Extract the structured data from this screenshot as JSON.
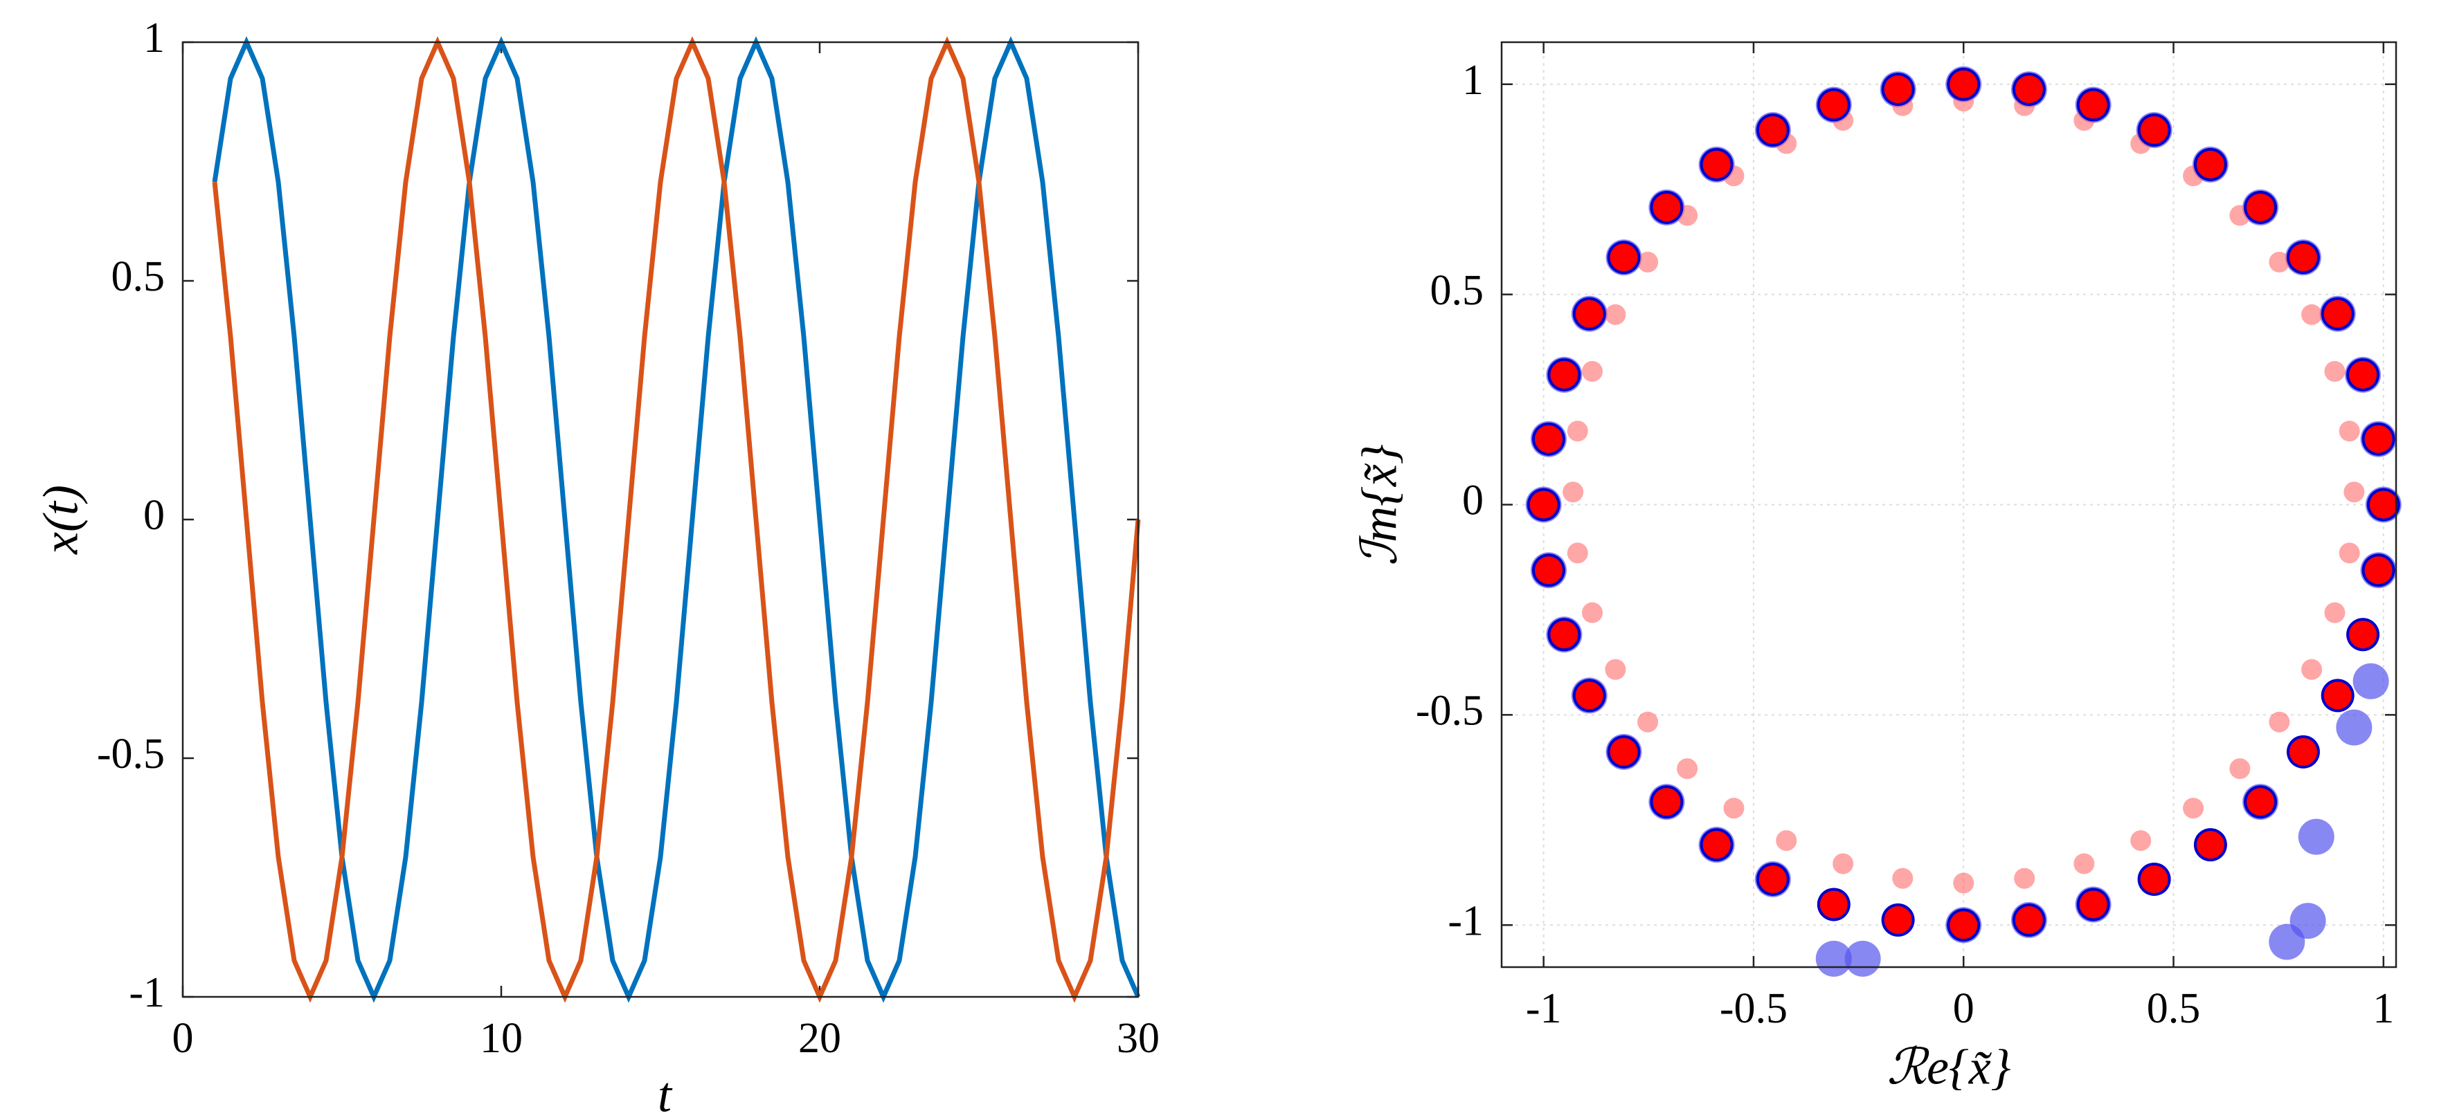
{
  "chart_data": [
    {
      "type": "line",
      "x_label": "t",
      "y_label": "x(t)",
      "x": [
        1,
        1.5,
        2,
        2.5,
        3,
        3.5,
        4,
        4.5,
        5,
        5.5,
        6,
        6.5,
        7,
        7.5,
        8,
        8.5,
        9,
        9.5,
        10,
        10.5,
        11,
        11.5,
        12,
        12.5,
        13,
        13.5,
        14,
        14.5,
        15,
        15.5,
        16,
        16.5,
        17,
        17.5,
        18,
        18.5,
        19,
        19.5,
        20,
        20.5,
        21,
        21.5,
        22,
        22.5,
        23,
        23.5,
        24,
        24.5,
        25,
        25.5,
        26,
        26.5,
        27,
        27.5,
        28,
        28.5,
        29,
        29.5,
        30
      ],
      "series": [
        {
          "color": "#0072BD",
          "values": [
            0.707,
            0.924,
            1,
            0.924,
            0.707,
            0.383,
            0,
            -0.383,
            -0.707,
            -0.924,
            -1,
            -0.924,
            -0.707,
            -0.383,
            0,
            0.383,
            0.707,
            0.924,
            1,
            0.924,
            0.707,
            0.383,
            0,
            -0.383,
            -0.707,
            -0.924,
            -1,
            -0.924,
            -0.707,
            -0.383,
            0,
            0.383,
            0.707,
            0.924,
            1,
            0.924,
            0.707,
            0.383,
            0,
            -0.383,
            -0.707,
            -0.924,
            -1,
            -0.924,
            -0.707,
            -0.383,
            0,
            0.383,
            0.707,
            0.924,
            1,
            0.924,
            0.707,
            0.383,
            0,
            -0.383,
            -0.707,
            -0.924,
            -1
          ]
        },
        {
          "color": "#D95319",
          "values": [
            0.707,
            0.383,
            0,
            -0.383,
            -0.707,
            -0.924,
            -1,
            -0.924,
            -0.707,
            -0.383,
            0,
            0.383,
            0.707,
            0.924,
            1,
            0.924,
            0.707,
            0.383,
            0,
            -0.383,
            -0.707,
            -0.924,
            -1,
            -0.924,
            -0.707,
            -0.383,
            0,
            0.383,
            0.707,
            0.924,
            1,
            0.924,
            0.707,
            0.383,
            0,
            -0.383,
            -0.707,
            -0.924,
            -1,
            -0.924,
            -0.707,
            -0.383,
            0,
            0.383,
            0.707,
            0.924,
            1,
            0.924,
            0.707,
            0.383,
            0,
            -0.383,
            -0.707,
            -0.924,
            -1,
            -0.924,
            -0.707,
            -0.383,
            0
          ]
        }
      ],
      "xlim": [
        0,
        30
      ],
      "ylim": [
        -1,
        1
      ],
      "xticks": [
        0,
        10,
        20,
        30
      ],
      "yticks": [
        -1,
        -0.5,
        0,
        0.5,
        1
      ],
      "grid": false
    },
    {
      "type": "scatter",
      "x_label": "ℛe{x̃}",
      "y_label": "ℐm{x̃}",
      "series": [
        {
          "color": "#5555ee",
          "alpha": 0.7,
          "marker_size": 26,
          "x": [
            1,
            0.988,
            0.951,
            0.891,
            0.809,
            0.707,
            0.588,
            0.454,
            0.309,
            0.156,
            0,
            -0.156,
            -0.309,
            -0.454,
            -0.588,
            -0.707,
            -0.809,
            -0.891,
            -0.951,
            -0.988,
            -1,
            -0.988,
            -0.951,
            -0.891,
            -0.809,
            -0.707,
            -0.588,
            -0.454,
            -0.309,
            -0.24,
            0,
            0.156,
            0.309,
            0.82,
            0.77,
            0.707,
            0.84,
            0.93,
            0.97,
            0.988
          ],
          "values": [
            0,
            0.156,
            0.309,
            0.454,
            0.588,
            0.707,
            0.809,
            0.891,
            0.951,
            0.988,
            1,
            0.988,
            0.951,
            0.891,
            0.809,
            0.707,
            0.588,
            0.454,
            0.309,
            0.156,
            0,
            -0.156,
            -0.309,
            -0.454,
            -0.588,
            -0.707,
            -0.809,
            -0.891,
            -1.08,
            -1.08,
            -1,
            -0.988,
            -0.951,
            -0.99,
            -1.04,
            -0.707,
            -0.79,
            -0.53,
            -0.42,
            -0.156
          ]
        },
        {
          "color": "#ff6b6b",
          "alpha": 0.6,
          "marker_size": 15,
          "x": [
            0.93,
            0.919,
            0.884,
            0.829,
            0.752,
            0.658,
            0.547,
            0.422,
            0.287,
            0.145,
            0,
            -0.145,
            -0.287,
            -0.422,
            -0.547,
            -0.658,
            -0.752,
            -0.829,
            -0.884,
            -0.919,
            -0.93,
            -0.919,
            -0.884,
            -0.829,
            -0.752,
            -0.658,
            -0.547,
            -0.422,
            -0.287,
            -0.145,
            0,
            0.145,
            0.287,
            0.422,
            0.547,
            0.658,
            0.752,
            0.829,
            0.884,
            0.919
          ],
          "values": [
            0.03,
            0.175,
            0.317,
            0.452,
            0.577,
            0.688,
            0.782,
            0.859,
            0.914,
            0.949,
            0.96,
            0.949,
            0.914,
            0.859,
            0.782,
            0.688,
            0.577,
            0.452,
            0.317,
            0.175,
            0.03,
            -0.115,
            -0.257,
            -0.392,
            -0.517,
            -0.628,
            -0.722,
            -0.799,
            -0.854,
            -0.889,
            -0.9,
            -0.889,
            -0.854,
            -0.799,
            -0.722,
            -0.628,
            -0.517,
            -0.392,
            -0.257,
            -0.115
          ]
        },
        {
          "color": "#0000cc",
          "alpha": 1,
          "marker_size": 24,
          "x": [
            1,
            0.988,
            0.951,
            0.891,
            0.809,
            0.707,
            0.588,
            0.454,
            0.309,
            0.156,
            0,
            -0.156,
            -0.309,
            -0.454,
            -0.588,
            -0.707,
            -0.809,
            -0.891,
            -0.951,
            -0.988,
            -1,
            -0.988,
            -0.951,
            -0.891,
            -0.809,
            -0.707,
            -0.588,
            -0.454,
            -0.309,
            -0.156,
            0,
            0.156,
            0.309,
            0.454,
            0.588,
            0.707,
            0.809,
            0.891,
            0.951,
            0.988
          ],
          "values": [
            0,
            0.156,
            0.309,
            0.454,
            0.588,
            0.707,
            0.809,
            0.891,
            0.951,
            0.988,
            1,
            0.988,
            0.951,
            0.891,
            0.809,
            0.707,
            0.588,
            0.454,
            0.309,
            0.156,
            0,
            -0.156,
            -0.309,
            -0.454,
            -0.588,
            -0.707,
            -0.809,
            -0.891,
            -0.951,
            -0.988,
            -1,
            -0.988,
            -0.951,
            -0.891,
            -0.809,
            -0.707,
            -0.588,
            -0.454,
            -0.309,
            -0.156
          ]
        },
        {
          "color": "#ff0000",
          "alpha": 1,
          "marker_size": 20,
          "x": [
            1,
            0.988,
            0.951,
            0.891,
            0.809,
            0.707,
            0.588,
            0.454,
            0.309,
            0.156,
            0,
            -0.156,
            -0.309,
            -0.454,
            -0.588,
            -0.707,
            -0.809,
            -0.891,
            -0.951,
            -0.988,
            -1,
            -0.988,
            -0.951,
            -0.891,
            -0.809,
            -0.707,
            -0.588,
            -0.454,
            -0.309,
            -0.156,
            0,
            0.156,
            0.309,
            0.454,
            0.588,
            0.707,
            0.809,
            0.891,
            0.951,
            0.988
          ],
          "values": [
            0,
            0.156,
            0.309,
            0.454,
            0.588,
            0.707,
            0.809,
            0.891,
            0.951,
            0.988,
            1,
            0.988,
            0.951,
            0.891,
            0.809,
            0.707,
            0.588,
            0.454,
            0.309,
            0.156,
            0,
            -0.156,
            -0.309,
            -0.454,
            -0.588,
            -0.707,
            -0.809,
            -0.891,
            -0.951,
            -0.988,
            -1,
            -0.988,
            -0.951,
            -0.891,
            -0.809,
            -0.707,
            -0.588,
            -0.454,
            -0.309,
            -0.156
          ]
        }
      ],
      "xlim": [
        -1.1,
        1.03
      ],
      "ylim": [
        -1.1,
        1.1
      ],
      "xticks": [
        -1,
        -0.5,
        0,
        0.5,
        1
      ],
      "yticks": [
        -1,
        -0.5,
        0,
        0.5,
        1
      ],
      "grid": true
    }
  ]
}
